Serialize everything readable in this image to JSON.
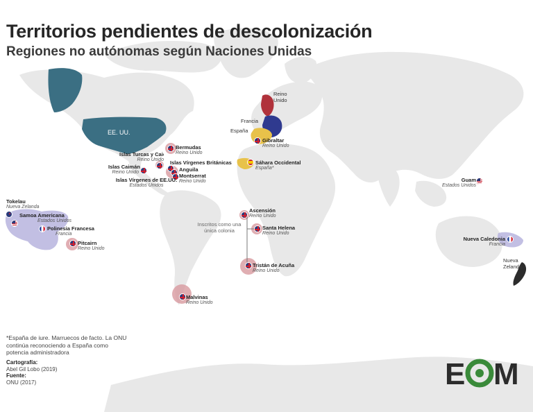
{
  "header": {
    "title": "Territorios pendientes de descolonización",
    "subtitle": "Regiones no autónomas según Naciones Unidas"
  },
  "colors": {
    "land": "#e8e8e8",
    "uk_france_us": "#3b6f83",
    "uk": "#b0323b",
    "france": "#2f3a8f",
    "spain": "#e8c24a",
    "territory_circle": "#d99aa0",
    "pacific_zone": "#b7b4de"
  },
  "powers": {
    "usa": "EE. UU.",
    "uk": "Reino Unido",
    "france": "Francia",
    "spain": "España",
    "nz": "Nueva Zelanda"
  },
  "territories": [
    {
      "name": "Bermudas",
      "admin": "Reino Unido",
      "flag": "uk"
    },
    {
      "name": "Islas Turcas y Caicos",
      "admin": "Reino Unido",
      "flag": "uk"
    },
    {
      "name": "Islas Vírgenes Británicas",
      "admin": "",
      "flag": "uk"
    },
    {
      "name": "Islas Caimán",
      "admin": "Reino Unido",
      "flag": "uk"
    },
    {
      "name": "Anguila",
      "admin": "",
      "flag": "uk"
    },
    {
      "name": "Montserrat",
      "admin": "Reino Unido",
      "flag": "uk"
    },
    {
      "name": "Islas Vírgenes de EE.UU.",
      "admin": "Estados Unidos",
      "flag": "us"
    },
    {
      "name": "Gibraltar",
      "admin": "Reino Unido",
      "flag": "uk"
    },
    {
      "name": "Sáhara Occidental",
      "admin": "España*",
      "flag": "es"
    },
    {
      "name": "Guam",
      "admin": "Estados Unidos",
      "flag": "us"
    },
    {
      "name": "Tokelau",
      "admin": "Nueva Zelanda",
      "flag": "nz"
    },
    {
      "name": "Samoa Americana",
      "admin": "Estados Unidos",
      "flag": "us"
    },
    {
      "name": "Polinesia Francesa",
      "admin": "Francia",
      "flag": "fr"
    },
    {
      "name": "Pitcairn",
      "admin": "Reino Unido",
      "flag": "uk"
    },
    {
      "name": "Ascensión",
      "admin": "Reino Unido",
      "flag": "uk"
    },
    {
      "name": "Santa Helena",
      "admin": "Reino Unido",
      "flag": "uk"
    },
    {
      "name": "Tristán de Acuña",
      "admin": "Reino Unido",
      "flag": "uk"
    },
    {
      "name": "Malvinas",
      "admin": "Reino Unido",
      "flag": "uk"
    },
    {
      "name": "Nueva Caledonia",
      "admin": "Francia",
      "flag": "fr"
    }
  ],
  "annotation": "Inscritos como una única colonia",
  "footnote": "*España de iure. Marruecos de facto. La ONU continúa reconociendo a España como potencia administradora",
  "credits": {
    "cartography_label": "Cartografía:",
    "cartography_value": "Abel Gil Lobo (2019)",
    "source_label": "Fuente:",
    "source_value": "ONU (2017)"
  },
  "logo": {
    "text": "EOM",
    "green": "#3a8a3a",
    "dark": "#2c2c2c"
  }
}
